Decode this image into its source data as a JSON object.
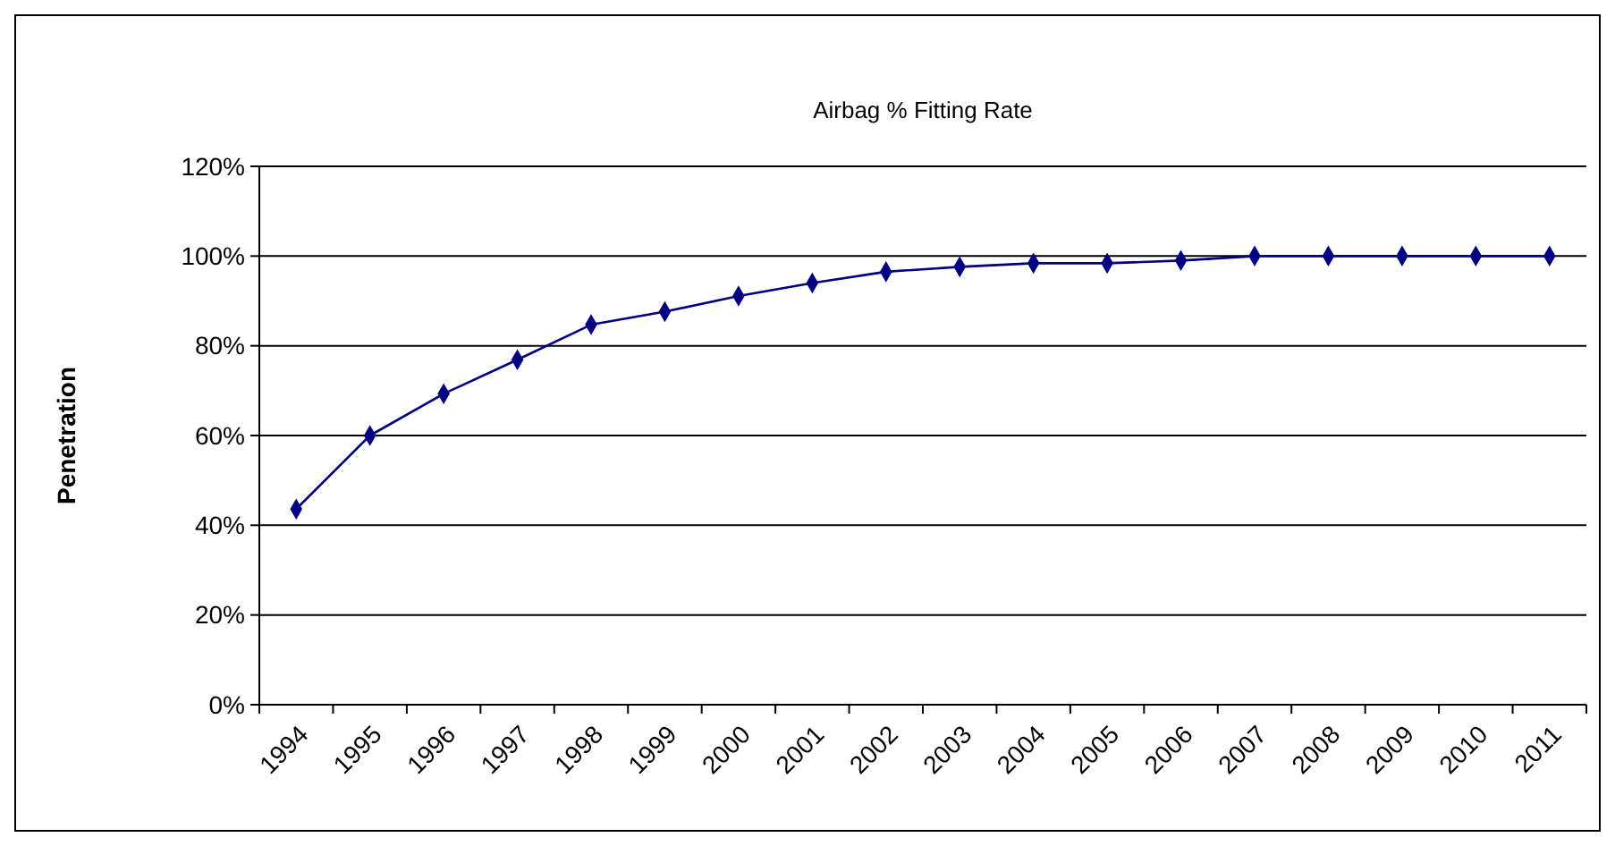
{
  "chart_data": {
    "type": "line",
    "title": "Airbag  % Fitting Rate",
    "ylabel": "Penetration",
    "categories": [
      "1994",
      "1995",
      "1996",
      "1997",
      "1998",
      "1999",
      "2000",
      "2001",
      "2002",
      "2003",
      "2004",
      "2005",
      "2006",
      "2007",
      "2008",
      "2009",
      "2010",
      "2011"
    ],
    "series": [
      {
        "color": "#000080",
        "values": [
          43.6,
          60,
          69.3,
          76.9,
          84.7,
          87.6,
          91.1,
          94,
          96.5,
          97.6,
          98.4,
          98.4,
          99,
          100,
          100,
          100,
          100,
          100
        ]
      }
    ],
    "ylim": [
      0,
      120
    ],
    "yticks": [
      {
        "value": 0,
        "label": "0%"
      },
      {
        "value": 20,
        "label": "20%"
      },
      {
        "value": 40,
        "label": "40%"
      },
      {
        "value": 60,
        "label": "60%"
      },
      {
        "value": 80,
        "label": "80%"
      },
      {
        "value": 100,
        "label": "100%"
      },
      {
        "value": 120,
        "label": "120%"
      }
    ],
    "grid": "y",
    "marker": "diamond",
    "line_style": "solid"
  }
}
